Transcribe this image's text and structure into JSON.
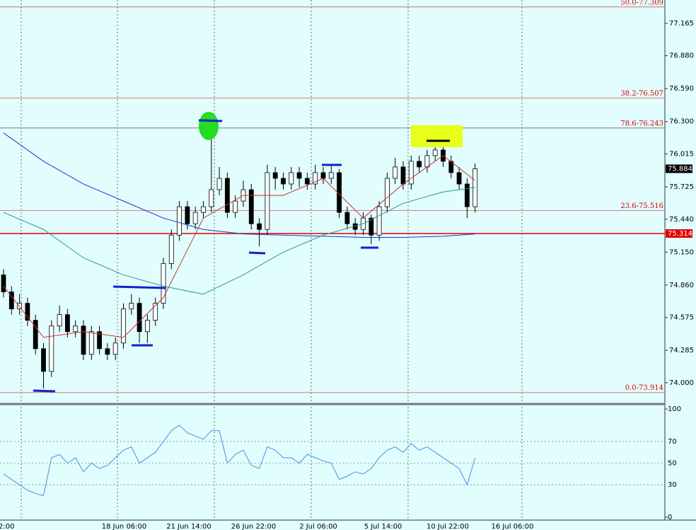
{
  "chart_data": {
    "type": "candlestick",
    "ylim": [
      73.85,
      77.37
    ],
    "yticks": [
      77.165,
      {
        "value": 76.88,
        "label": "76.880"
      },
      {
        "value": 76.59,
        "label": "76.590"
      },
      {
        "value": 76.3,
        "label": "76.300"
      },
      76.015,
      75.725,
      {
        "value": 75.44,
        "label": "75.440"
      },
      {
        "value": 75.15,
        "label": "75.150"
      },
      {
        "value": 74.86,
        "label": "74.860"
      },
      74.575,
      74.285,
      {
        "value": 74.0,
        "label": "74.000"
      }
    ],
    "x_labels": [
      "2:00",
      "18 Jun 06:00",
      "21 Jun 14:00",
      "26 Jun 22:00",
      "2 Jul 06:00",
      "5 Jul 14:00",
      "10 Jul 22:00",
      "16 Jul 06:00"
    ],
    "open": [
      74.95,
      74.8,
      74.65,
      74.7,
      74.55,
      74.3,
      74.1,
      74.5,
      74.6,
      74.45,
      74.5,
      74.25,
      74.45,
      74.3,
      74.25,
      74.35,
      74.65,
      74.7,
      74.45,
      74.55,
      74.7,
      75.05,
      75.3,
      75.55,
      75.4,
      75.5,
      75.55,
      75.7,
      75.8,
      75.5,
      75.6,
      75.7,
      75.4,
      75.35,
      75.85,
      75.8,
      75.75,
      75.85,
      75.8,
      75.75,
      75.85,
      75.8,
      75.85,
      75.5,
      75.4,
      75.35,
      75.45,
      75.3,
      75.55,
      75.8,
      75.9,
      75.75,
      75.95,
      75.9,
      76.0,
      76.05,
      75.95,
      75.85,
      75.75,
      75.55
    ],
    "high": [
      75.0,
      74.85,
      74.78,
      74.75,
      74.6,
      74.35,
      74.55,
      74.68,
      74.65,
      74.55,
      74.55,
      74.5,
      74.5,
      74.35,
      74.4,
      74.7,
      74.78,
      74.75,
      74.6,
      74.75,
      75.1,
      75.35,
      75.6,
      75.6,
      75.55,
      75.6,
      76.27,
      75.9,
      75.85,
      75.65,
      75.78,
      75.75,
      75.45,
      75.92,
      75.9,
      75.85,
      75.9,
      75.9,
      75.85,
      75.92,
      75.9,
      75.92,
      75.88,
      75.55,
      75.45,
      75.5,
      75.48,
      75.6,
      75.85,
      75.98,
      75.95,
      76.0,
      76.0,
      76.05,
      76.12,
      76.08,
      76.0,
      75.9,
      75.8,
      75.93
    ],
    "low": [
      74.75,
      74.6,
      74.6,
      74.5,
      74.25,
      73.95,
      74.05,
      74.45,
      74.4,
      74.4,
      74.2,
      74.2,
      74.25,
      74.2,
      74.2,
      74.3,
      74.6,
      74.35,
      74.35,
      74.5,
      74.65,
      75.0,
      75.25,
      75.35,
      75.35,
      75.45,
      75.5,
      75.65,
      75.45,
      75.45,
      75.55,
      75.35,
      75.2,
      75.3,
      75.7,
      75.7,
      75.7,
      75.72,
      75.7,
      75.7,
      75.75,
      75.75,
      75.45,
      75.35,
      75.3,
      75.3,
      75.22,
      75.25,
      75.5,
      75.75,
      75.7,
      75.7,
      75.85,
      75.85,
      75.95,
      75.9,
      75.8,
      75.7,
      75.45,
      75.5
    ],
    "close": [
      74.8,
      74.65,
      74.7,
      74.55,
      74.3,
      74.1,
      74.5,
      74.6,
      74.45,
      74.5,
      74.25,
      74.45,
      74.3,
      74.25,
      74.35,
      74.65,
      74.7,
      74.45,
      74.55,
      74.7,
      75.05,
      75.3,
      75.55,
      75.4,
      75.5,
      75.55,
      75.7,
      75.8,
      75.5,
      75.6,
      75.7,
      75.4,
      75.35,
      75.85,
      75.8,
      75.75,
      75.85,
      75.8,
      75.75,
      75.85,
      75.8,
      75.85,
      75.5,
      75.4,
      75.35,
      75.45,
      75.3,
      75.55,
      75.8,
      75.9,
      75.75,
      75.95,
      75.9,
      76.0,
      76.05,
      75.95,
      75.85,
      75.75,
      75.55,
      75.884
    ],
    "indicators": [
      {
        "color": "#2233cc",
        "index": [
          0,
          5,
          10,
          15,
          20,
          25,
          30,
          35,
          40,
          45,
          50,
          55,
          59
        ],
        "values": [
          76.2,
          75.95,
          75.75,
          75.6,
          75.45,
          75.35,
          75.31,
          75.3,
          75.29,
          75.28,
          75.28,
          75.29,
          75.31
        ]
      },
      {
        "color": "#2a9a8a",
        "index": [
          0,
          5,
          10,
          15,
          20,
          25,
          30,
          35,
          40,
          45,
          50,
          55,
          59
        ],
        "values": [
          75.5,
          75.35,
          75.1,
          74.95,
          74.85,
          74.78,
          74.95,
          75.15,
          75.3,
          75.4,
          75.58,
          75.68,
          75.72
        ]
      },
      {
        "color": "#d03030",
        "index": [
          0,
          5,
          10,
          15,
          20,
          25,
          30,
          35,
          40,
          45,
          50,
          55,
          59
        ],
        "values": [
          74.85,
          74.4,
          74.45,
          74.4,
          74.75,
          75.45,
          75.65,
          75.65,
          75.8,
          75.45,
          75.75,
          76.0,
          75.78
        ]
      }
    ],
    "levels": [
      {
        "value": 77.309,
        "label": "50.0-77.309",
        "color": "#e05050"
      },
      {
        "value": 76.507,
        "label": "38.2-76.507",
        "color": "#e05050"
      },
      {
        "value": 76.243,
        "label": "78.6-76.243",
        "color": "#555555"
      },
      {
        "value": 75.516,
        "label": "23.6-75.516",
        "color": "#e05050"
      },
      {
        "value": 73.914,
        "label": "0.0-73.914",
        "color": "#e05050"
      }
    ],
    "price_tags": [
      {
        "value": 75.884,
        "color": "#000000"
      },
      {
        "value": 75.314,
        "color": "#e00000"
      }
    ],
    "rsi": {
      "color": "#4a90e2",
      "ylim": [
        0,
        100
      ],
      "yticks": [
        0,
        30,
        50,
        70,
        100
      ],
      "values": [
        40,
        35,
        30,
        25,
        22,
        20,
        55,
        58,
        50,
        55,
        42,
        50,
        45,
        48,
        55,
        62,
        65,
        50,
        55,
        60,
        70,
        80,
        85,
        78,
        75,
        72,
        80,
        80,
        50,
        58,
        62,
        48,
        45,
        65,
        62,
        55,
        55,
        50,
        58,
        55,
        52,
        50,
        35,
        38,
        42,
        40,
        45,
        55,
        62,
        65,
        60,
        68,
        62,
        65,
        60,
        55,
        50,
        45,
        30,
        55
      ]
    }
  }
}
